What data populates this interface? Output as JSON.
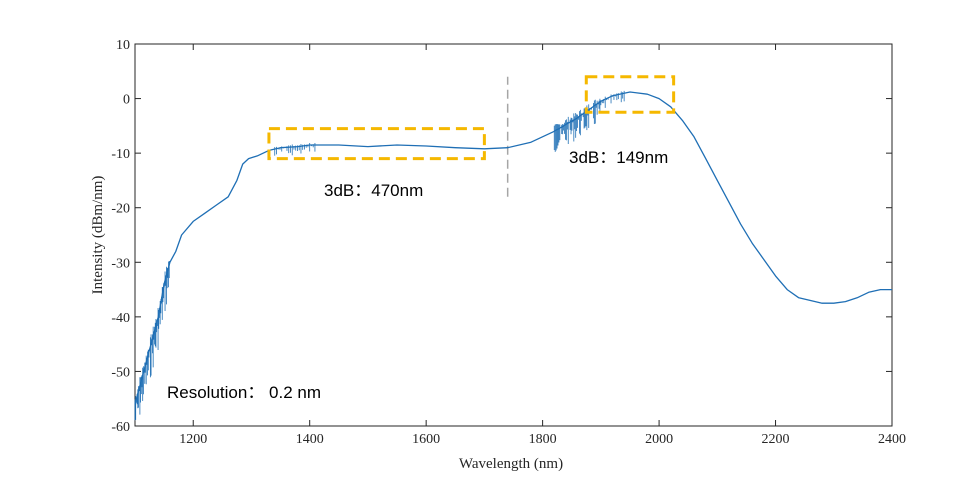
{
  "chart_data": {
    "type": "line",
    "xlabel": "Wavelength  (nm)",
    "ylabel": "Intensity  (dBm/nm)",
    "xlim": [
      1100,
      2400
    ],
    "ylim": [
      -60,
      10
    ],
    "x_ticks": [
      1200,
      1400,
      1600,
      1800,
      2000,
      2200,
      2400
    ],
    "y_ticks": [
      10,
      0,
      -10,
      -20,
      -30,
      -40,
      -50,
      -60
    ],
    "grid": false,
    "line_color": "#1f6fb5",
    "series": [
      {
        "x": [
          1100,
          1110,
          1120,
          1130,
          1140,
          1150,
          1160,
          1170,
          1180,
          1200,
          1220,
          1240,
          1260,
          1275,
          1285,
          1295,
          1310,
          1330,
          1350,
          1380,
          1400,
          1450,
          1500,
          1550,
          1600,
          1650,
          1700,
          1740,
          1780,
          1820,
          1860,
          1880,
          1900,
          1920,
          1950,
          1980,
          2000,
          2020,
          2040,
          2060,
          2080,
          2100,
          2120,
          2140,
          2160,
          2180,
          2200,
          2220,
          2240,
          2260,
          2280,
          2300,
          2320,
          2340,
          2360,
          2380,
          2400
        ],
        "y": [
          -56,
          -52,
          -48,
          -44,
          -40,
          -34,
          -30,
          -28,
          -25,
          -22.5,
          -21,
          -19.5,
          -18,
          -15,
          -12,
          -11,
          -10.5,
          -9.5,
          -9,
          -8.8,
          -8.5,
          -8.5,
          -8.8,
          -8.5,
          -8.7,
          -9,
          -9.2,
          -9,
          -8,
          -6,
          -3.5,
          -2,
          -0.5,
          0.5,
          1.2,
          0.8,
          0,
          -1.5,
          -4,
          -7,
          -11,
          -15,
          -19,
          -23,
          -26.5,
          -29.5,
          -32.5,
          -35,
          -36.5,
          -37,
          -37.5,
          -37.5,
          -37.2,
          -36.5,
          -35.5,
          -35,
          -35
        ]
      }
    ],
    "annotations": {
      "resolution": "Resolution：  0.2 nm",
      "band1": "3dB：470nm",
      "band2": "3dB：149nm"
    },
    "highlight_boxes": [
      {
        "x_range": [
          1330,
          1700
        ],
        "y_range": [
          -11,
          -5.5
        ],
        "color": "#f5b800"
      },
      {
        "x_range": [
          1875,
          2025
        ],
        "y_range": [
          -2.5,
          4
        ],
        "color": "#f5b800"
      }
    ],
    "divider": {
      "x": 1740,
      "y_range": [
        -18,
        4
      ],
      "color": "#a6a6a6"
    }
  }
}
